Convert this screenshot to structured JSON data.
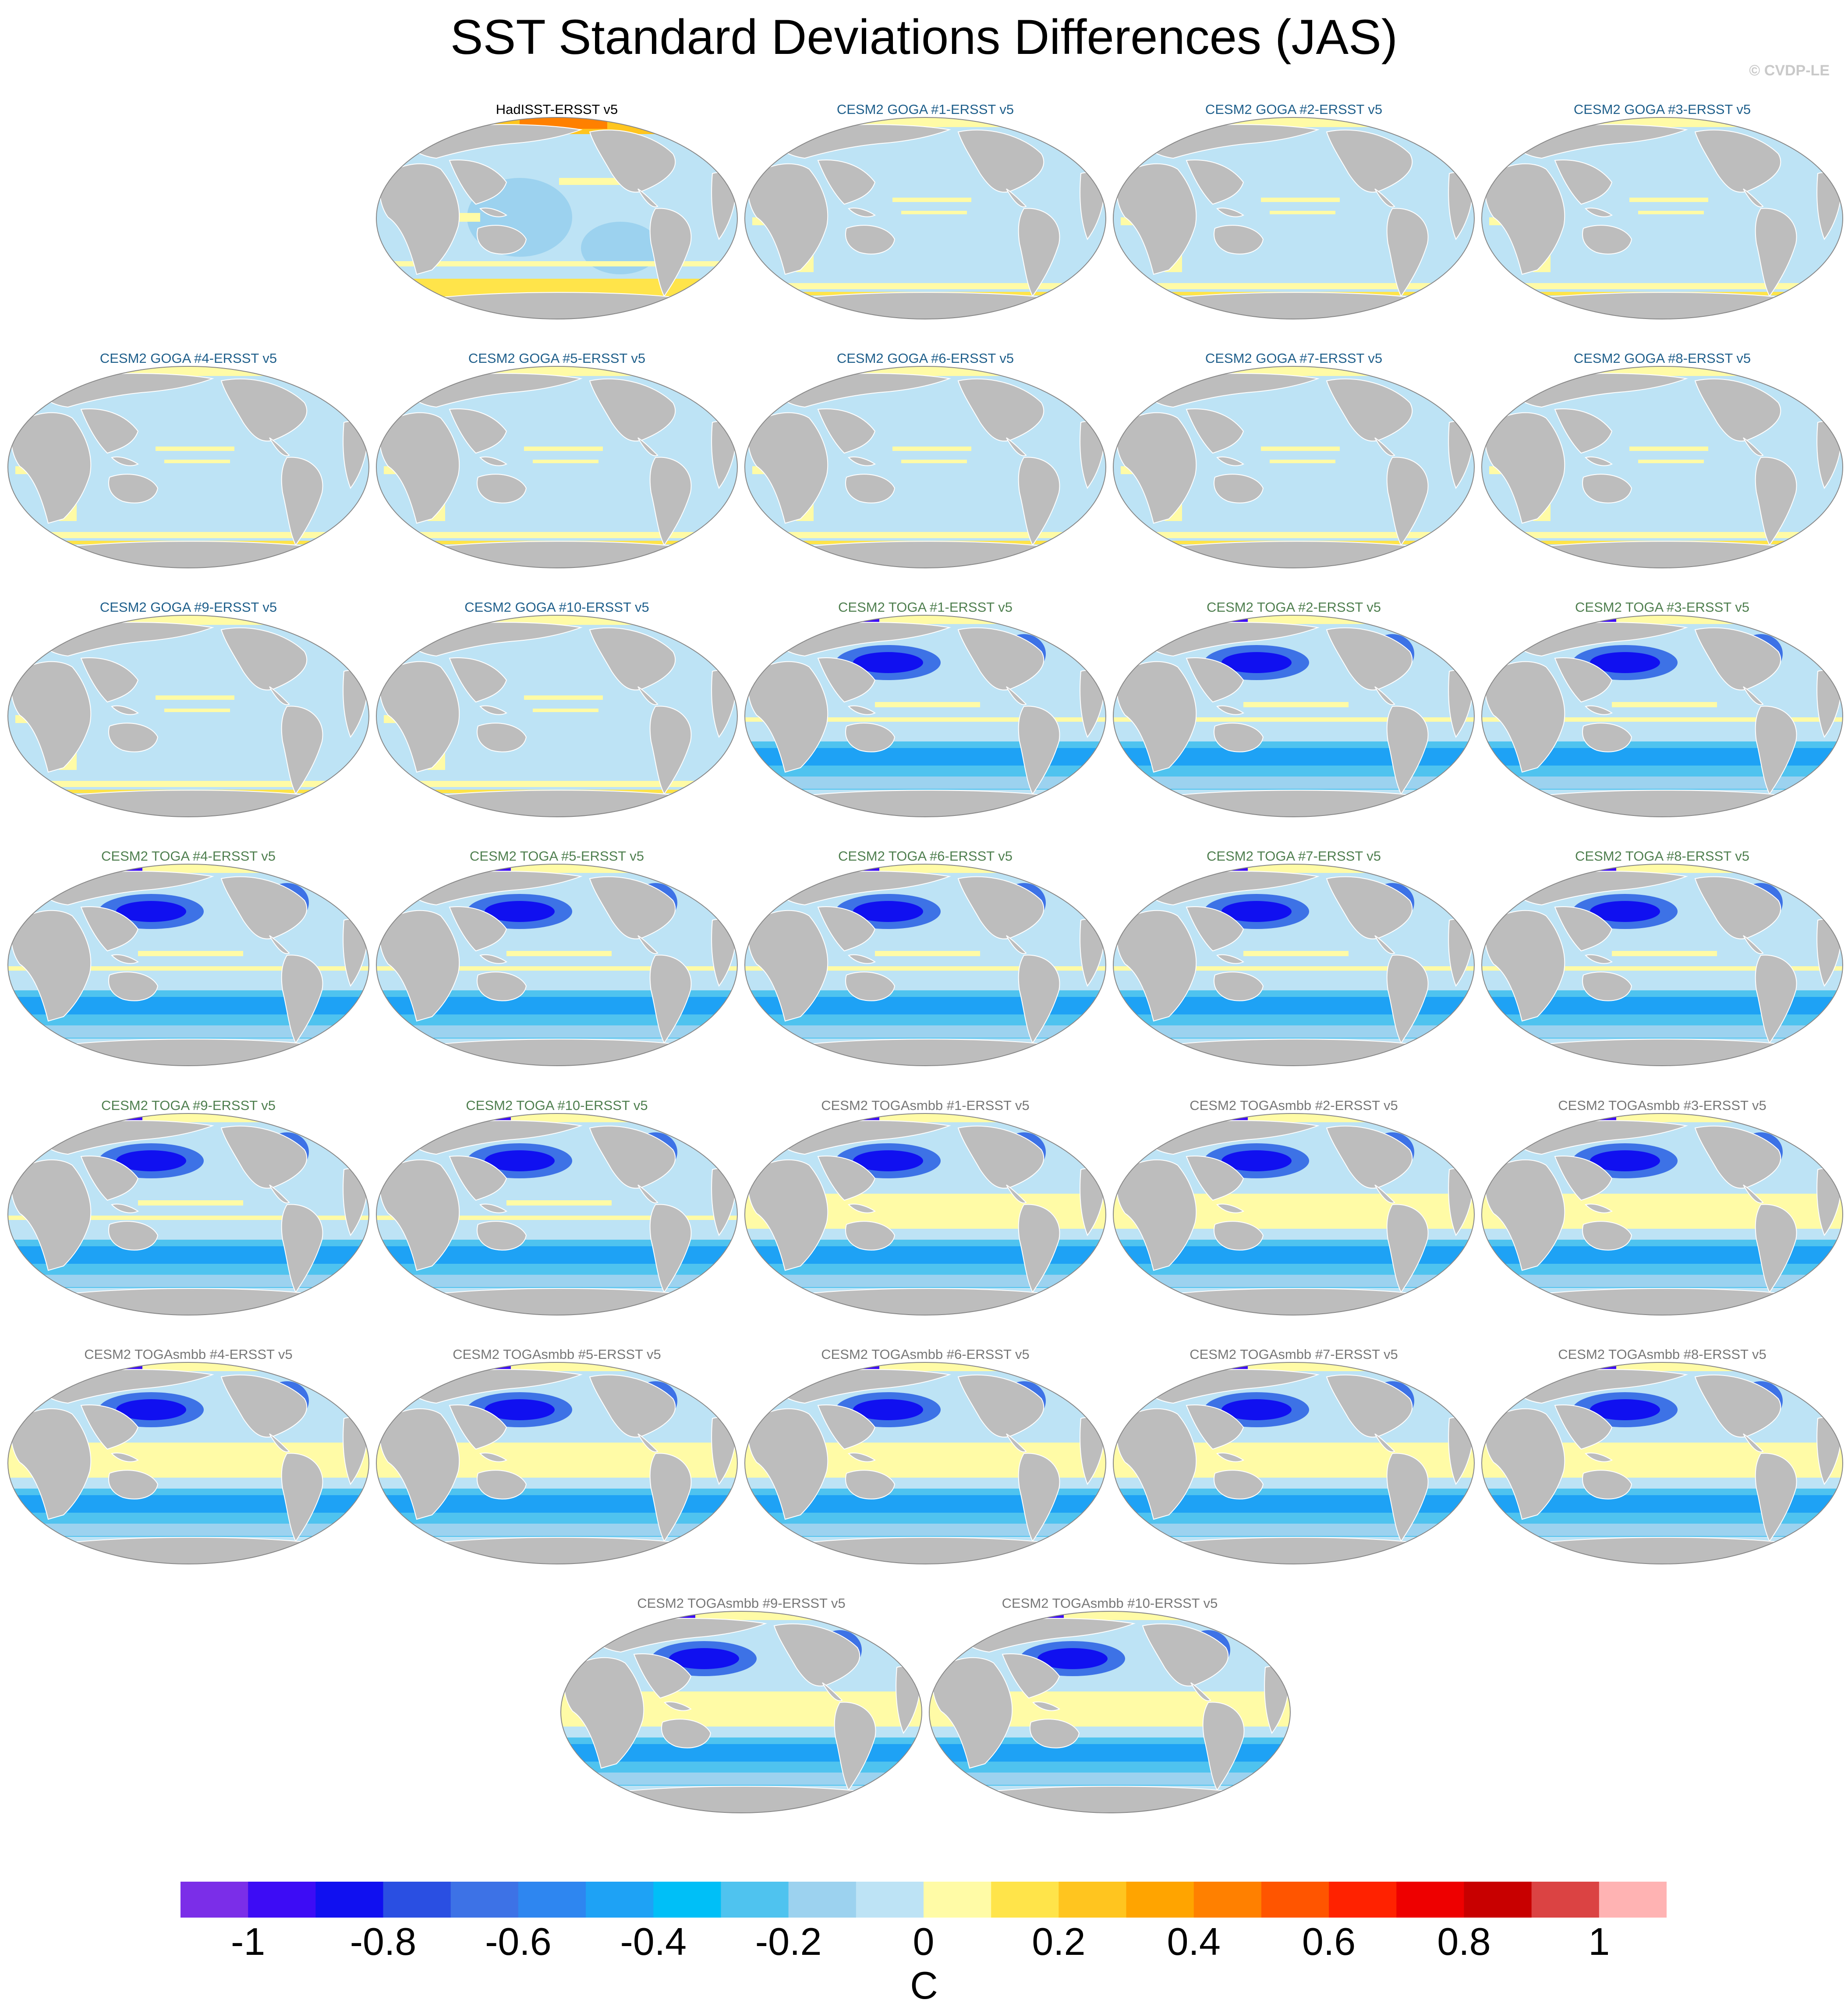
{
  "title": "SST Standard Deviations Differences (JAS)",
  "credit": "© CVDP-LE",
  "colors": {
    "goga_label": "#1f5f8b",
    "toga_label": "#4f7f4f",
    "togasmbb_label": "#777777",
    "obs_label": "#000000",
    "land": "#bdbdbd"
  },
  "panels": [
    {
      "label": "HadISST-ERSST v5",
      "type": "obs"
    },
    {
      "label": "CESM2 GOGA #1-ERSST v5",
      "type": "goga"
    },
    {
      "label": "CESM2 GOGA #2-ERSST v5",
      "type": "goga"
    },
    {
      "label": "CESM2 GOGA #3-ERSST v5",
      "type": "goga"
    },
    {
      "label": "CESM2 GOGA #4-ERSST v5",
      "type": "goga"
    },
    {
      "label": "CESM2 GOGA #5-ERSST v5",
      "type": "goga"
    },
    {
      "label": "CESM2 GOGA #6-ERSST v5",
      "type": "goga"
    },
    {
      "label": "CESM2 GOGA #7-ERSST v5",
      "type": "goga"
    },
    {
      "label": "CESM2 GOGA #8-ERSST v5",
      "type": "goga"
    },
    {
      "label": "CESM2 GOGA #9-ERSST v5",
      "type": "goga"
    },
    {
      "label": "CESM2 GOGA #10-ERSST v5",
      "type": "goga"
    },
    {
      "label": "CESM2 TOGA #1-ERSST v5",
      "type": "toga"
    },
    {
      "label": "CESM2 TOGA #2-ERSST v5",
      "type": "toga"
    },
    {
      "label": "CESM2 TOGA #3-ERSST v5",
      "type": "toga"
    },
    {
      "label": "CESM2 TOGA #4-ERSST v5",
      "type": "toga"
    },
    {
      "label": "CESM2 TOGA #5-ERSST v5",
      "type": "toga"
    },
    {
      "label": "CESM2 TOGA #6-ERSST v5",
      "type": "toga"
    },
    {
      "label": "CESM2 TOGA #7-ERSST v5",
      "type": "toga"
    },
    {
      "label": "CESM2 TOGA #8-ERSST v5",
      "type": "toga"
    },
    {
      "label": "CESM2 TOGA #9-ERSST v5",
      "type": "toga"
    },
    {
      "label": "CESM2 TOGA #10-ERSST v5",
      "type": "toga"
    },
    {
      "label": "CESM2 TOGAsmbb #1-ERSST v5",
      "type": "togasmbb"
    },
    {
      "label": "CESM2 TOGAsmbb #2-ERSST v5",
      "type": "togasmbb"
    },
    {
      "label": "CESM2 TOGAsmbb #3-ERSST v5",
      "type": "togasmbb"
    },
    {
      "label": "CESM2 TOGAsmbb #4-ERSST v5",
      "type": "togasmbb"
    },
    {
      "label": "CESM2 TOGAsmbb #5-ERSST v5",
      "type": "togasmbb"
    },
    {
      "label": "CESM2 TOGAsmbb #6-ERSST v5",
      "type": "togasmbb"
    },
    {
      "label": "CESM2 TOGAsmbb #7-ERSST v5",
      "type": "togasmbb"
    },
    {
      "label": "CESM2 TOGAsmbb #8-ERSST v5",
      "type": "togasmbb"
    },
    {
      "label": "CESM2 TOGAsmbb #9-ERSST v5",
      "type": "togasmbb"
    },
    {
      "label": "CESM2 TOGAsmbb #10-ERSST v5",
      "type": "togasmbb"
    }
  ],
  "colorbar": {
    "colors": [
      "#7b2ee8",
      "#3d0cf5",
      "#1010f0",
      "#2a4fe2",
      "#3d72e6",
      "#2e86f0",
      "#1ea2f5",
      "#00bff7",
      "#4fc3ef",
      "#9cd2ef",
      "#bde3f5",
      "#fffba6",
      "#ffe44a",
      "#ffc51f",
      "#ffa400",
      "#ff8000",
      "#ff5500",
      "#ff2200",
      "#ee0000",
      "#c80000",
      "#db4343",
      "#ffb3b3"
    ],
    "ticks": [
      "-1",
      "-0.8",
      "-0.6",
      "-0.4",
      "-0.2",
      "0",
      "0.2",
      "0.4",
      "0.6",
      "0.8",
      "1"
    ],
    "units": "C"
  }
}
